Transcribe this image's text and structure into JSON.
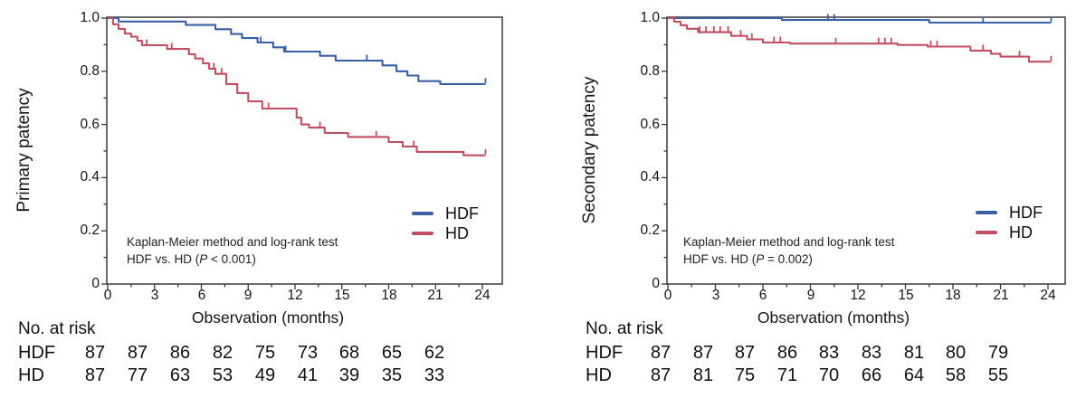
{
  "chart_data": [
    {
      "type": "line",
      "subtype": "kaplan-meier-step",
      "ylabel": "Primary patency",
      "xlabel": "Observation (months)",
      "xticks": [
        0,
        3,
        6,
        9,
        12,
        15,
        18,
        21,
        24
      ],
      "yticks": [
        "1.0",
        "0.8",
        "0.6",
        "0.4",
        "0.2",
        "0"
      ],
      "ytick_values": [
        1.0,
        0.8,
        0.6,
        0.4,
        0.2,
        0
      ],
      "xlim": [
        0,
        25.3
      ],
      "ylim": [
        0,
        1.0
      ],
      "grid": false,
      "legend_position": "inside lower right",
      "annotation": {
        "line1": "Kaplan-Meier method and log-rank test",
        "p_prefix": "HDF vs. HD (",
        "p_italic": "P",
        "p_rest": " < 0.001)"
      },
      "series": [
        {
          "name": "HDF",
          "color": "#3a5fa5",
          "steps": [
            [
              0,
              1.0
            ],
            [
              0.7,
              0.987
            ],
            [
              5.0,
              0.974
            ],
            [
              6.9,
              0.958
            ],
            [
              7.9,
              0.94
            ],
            [
              8.6,
              0.925
            ],
            [
              9.6,
              0.908
            ],
            [
              10.6,
              0.89
            ],
            [
              11.3,
              0.874
            ],
            [
              13.6,
              0.858
            ],
            [
              14.6,
              0.84
            ],
            [
              17.6,
              0.822
            ],
            [
              18.5,
              0.8
            ],
            [
              19.2,
              0.784
            ],
            [
              19.9,
              0.763
            ],
            [
              21.3,
              0.752
            ],
            [
              24.2,
              0.752
            ]
          ],
          "censor_ticks": [
            9.8,
            11.4,
            16.6,
            24.2
          ]
        },
        {
          "name": "HD",
          "color": "#c14f63",
          "steps": [
            [
              0,
              1.0
            ],
            [
              0.35,
              0.977
            ],
            [
              0.7,
              0.959
            ],
            [
              1.1,
              0.942
            ],
            [
              1.5,
              0.93
            ],
            [
              1.9,
              0.915
            ],
            [
              2.2,
              0.898
            ],
            [
              3.8,
              0.884
            ],
            [
              5.2,
              0.864
            ],
            [
              5.6,
              0.848
            ],
            [
              6.1,
              0.83
            ],
            [
              6.5,
              0.81
            ],
            [
              6.9,
              0.79
            ],
            [
              7.6,
              0.752
            ],
            [
              8.3,
              0.718
            ],
            [
              9.0,
              0.687
            ],
            [
              9.9,
              0.66
            ],
            [
              12.1,
              0.626
            ],
            [
              12.4,
              0.6
            ],
            [
              12.9,
              0.588
            ],
            [
              13.9,
              0.568
            ],
            [
              15.4,
              0.553
            ],
            [
              18.0,
              0.534
            ],
            [
              18.9,
              0.517
            ],
            [
              19.8,
              0.497
            ],
            [
              22.8,
              0.484
            ],
            [
              24.2,
              0.484
            ]
          ],
          "censor_ticks": [
            2.5,
            4.1,
            6.8,
            7.3,
            10.3,
            13.6,
            17.2,
            19.6,
            24.2
          ]
        }
      ],
      "risk_table": {
        "title": "No. at risk",
        "rows": [
          {
            "label": "HDF",
            "counts": [
              87,
              87,
              86,
              82,
              75,
              73,
              68,
              65,
              62
            ]
          },
          {
            "label": "HD",
            "counts": [
              87,
              77,
              63,
              53,
              49,
              41,
              39,
              35,
              33
            ]
          }
        ]
      }
    },
    {
      "type": "line",
      "subtype": "kaplan-meier-step",
      "ylabel": "Secondary patency",
      "xlabel": "Observation (months)",
      "xticks": [
        0,
        3,
        6,
        9,
        12,
        15,
        18,
        21,
        24
      ],
      "yticks": [
        "1.0",
        "0.8",
        "0.6",
        "0.4",
        "0.2",
        "0"
      ],
      "ytick_values": [
        1.0,
        0.8,
        0.6,
        0.4,
        0.2,
        0
      ],
      "xlim": [
        0,
        25.1
      ],
      "ylim": [
        0,
        1.0
      ],
      "grid": false,
      "legend_position": "inside lower right",
      "annotation": {
        "line1": "Kaplan-Meier method and log-rank test",
        "p_prefix": "HDF vs. HD (",
        "p_italic": "P",
        "p_rest": " = 0.002)"
      },
      "series": [
        {
          "name": "HDF",
          "color": "#3a5fa5",
          "steps": [
            [
              0,
              1.0
            ],
            [
              7.2,
              0.993
            ],
            [
              16.5,
              0.983
            ],
            [
              24.2,
              0.983
            ]
          ],
          "censor_ticks": [
            10.1,
            10.5,
            19.9,
            24.2
          ]
        },
        {
          "name": "HD",
          "color": "#c14f63",
          "steps": [
            [
              0,
              1.0
            ],
            [
              0.4,
              0.986
            ],
            [
              0.8,
              0.973
            ],
            [
              1.2,
              0.96
            ],
            [
              1.9,
              0.947
            ],
            [
              4.0,
              0.933
            ],
            [
              5.0,
              0.92
            ],
            [
              6.0,
              0.908
            ],
            [
              7.7,
              0.904
            ],
            [
              14.5,
              0.899
            ],
            [
              16.4,
              0.893
            ],
            [
              19.1,
              0.878
            ],
            [
              20.4,
              0.866
            ],
            [
              21.0,
              0.855
            ],
            [
              22.8,
              0.836
            ],
            [
              24.2,
              0.836
            ]
          ],
          "censor_ticks": [
            2.0,
            2.4,
            2.9,
            3.3,
            3.8,
            4.6,
            5.3,
            6.7,
            7.1,
            10.6,
            13.3,
            13.7,
            14.1,
            16.6,
            17.0,
            19.9,
            22.2,
            24.2
          ]
        }
      ],
      "risk_table": {
        "title": "No. at risk",
        "rows": [
          {
            "label": "HDF",
            "counts": [
              87,
              87,
              87,
              86,
              83,
              83,
              81,
              80,
              79
            ]
          },
          {
            "label": "HD",
            "counts": [
              87,
              81,
              75,
              71,
              70,
              66,
              64,
              58,
              55
            ]
          }
        ]
      }
    }
  ]
}
